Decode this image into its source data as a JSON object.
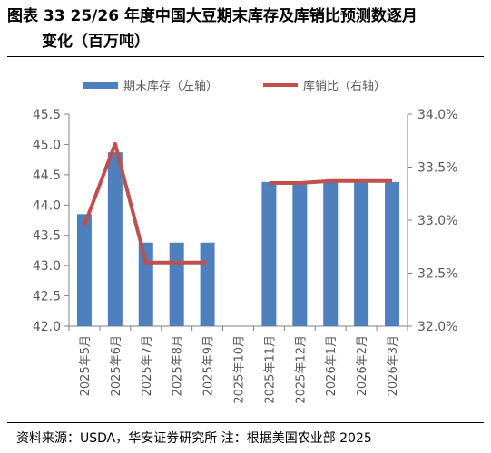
{
  "title": {
    "line1": "图表 33 25/26 年度中国大豆期末库存及库销比预测数逐月",
    "line2": "变化（百万吨）"
  },
  "source": "资料来源：USDA，华安证券研究所 注：根据美国农业部 2025",
  "colors": {
    "bar": "#4e80bd",
    "line": "#c0504d",
    "axis": "#808080",
    "text": "#595959"
  },
  "chart_data": {
    "type": "bar+line",
    "categories": [
      "2025年5月",
      "2025年6月",
      "2025年7月",
      "2025年8月",
      "2025年9月",
      "2025年10月",
      "2025年11月",
      "2025年12月",
      "2026年1月",
      "2026年2月",
      "2026年3月"
    ],
    "series": [
      {
        "name": "期末库存（左轴）",
        "type": "bar",
        "axis": "left",
        "values": [
          43.85,
          44.87,
          43.38,
          43.38,
          43.38,
          null,
          44.38,
          44.38,
          44.38,
          44.38,
          44.38
        ]
      },
      {
        "name": "库销比（右轴）",
        "type": "line",
        "axis": "right",
        "values": [
          32.95,
          33.72,
          32.6,
          32.6,
          32.6,
          null,
          33.35,
          33.35,
          33.37,
          33.37,
          33.37
        ]
      }
    ],
    "y_left": {
      "min": 42.0,
      "max": 45.5,
      "step": 0.5,
      "tick_labels": [
        "42.0",
        "42.5",
        "43.0",
        "43.5",
        "44.0",
        "44.5",
        "45.0",
        "45.5"
      ]
    },
    "y_right": {
      "min": 32.0,
      "max": 34.0,
      "step": 0.5,
      "tick_labels": [
        "32.0%",
        "32.5%",
        "33.0%",
        "33.5%",
        "34.0%"
      ]
    },
    "grid": false,
    "legend_position": "top"
  }
}
